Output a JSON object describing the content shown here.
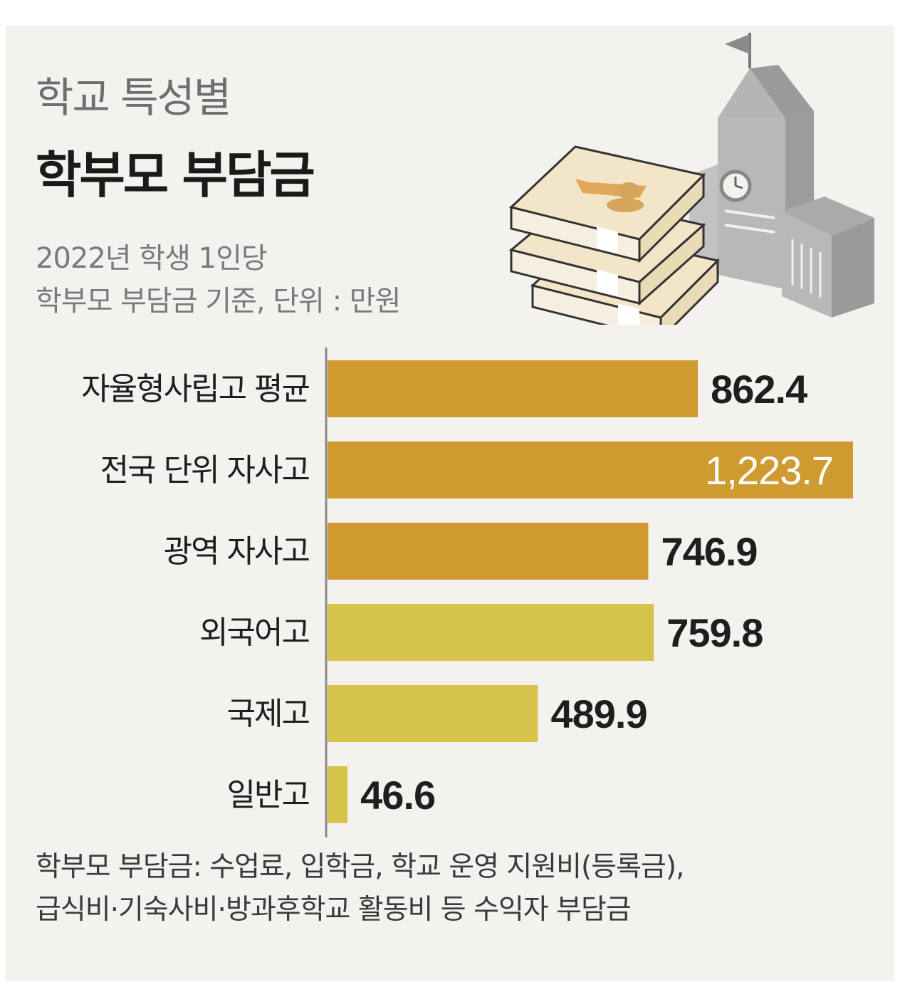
{
  "title_line1": "학교 특성별",
  "title_line2": "학부모 부담금",
  "subtitle_line1": "2022년 학생 1인당",
  "subtitle_line2": "학부모 부담금 기준, 단위 : 만원",
  "footnote_line1": "학부모 부담금: 수업료, 입학금, 학교 운영 지원비(등록금),",
  "footnote_line2": "급식비·기숙사비·방과후학교 활동비 등 수익자 부담금",
  "colors": {
    "background": "#f4f2ee",
    "bar_dark": "#cf9a30",
    "bar_light": "#d6c34a",
    "axis": "#8a8a8a",
    "label_text": "#1e1e1e",
    "value_inside": "#ffffff"
  },
  "chart_data": {
    "type": "bar",
    "orientation": "horizontal",
    "unit": "만원",
    "categories": [
      "자율형사립고 평균",
      "전국 단위 자사고",
      "광역 자사고",
      "외국어고",
      "국제고",
      "일반고"
    ],
    "values": [
      862.4,
      1223.7,
      746.9,
      759.8,
      489.9,
      46.6
    ],
    "value_labels": [
      "862.4",
      "1,223.7",
      "746.9",
      "759.8",
      "489.9",
      "46.6"
    ],
    "bar_colors": [
      "#cf9a30",
      "#cf9a30",
      "#cf9a30",
      "#d6c34a",
      "#d6c34a",
      "#d6c34a"
    ],
    "xlim": [
      0,
      1223.7
    ],
    "grid": false,
    "legend": "none"
  },
  "illustration": {
    "icons": [
      "money-stack-icon",
      "school-building-icon",
      "clock-icon",
      "flag-icon"
    ]
  }
}
